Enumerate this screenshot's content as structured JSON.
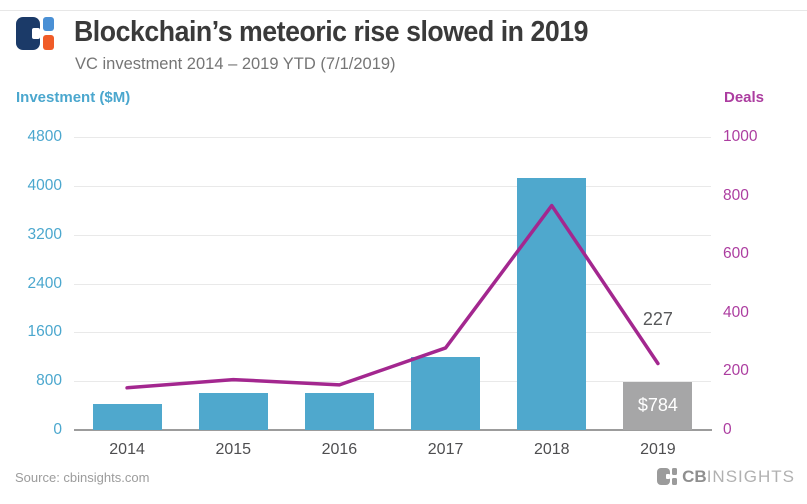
{
  "header": {
    "title": "Blockchain’s meteoric rise slowed in 2019",
    "subtitle": "VC investment 2014 – 2019 YTD (7/1/2019)"
  },
  "chart_data": {
    "type": "combo-bar-line",
    "categories": [
      "2014",
      "2015",
      "2016",
      "2017",
      "2018",
      "2019"
    ],
    "series": [
      {
        "name": "Investment ($M)",
        "type": "bar",
        "axis": "left",
        "values": [
          420,
          610,
          600,
          1200,
          4130,
          784
        ],
        "colors": [
          "#4FA8CD",
          "#4FA8CD",
          "#4FA8CD",
          "#4FA8CD",
          "#4FA8CD",
          "#A6A6A7"
        ]
      },
      {
        "name": "Deals",
        "type": "line",
        "axis": "right",
        "values": [
          144,
          172,
          154,
          280,
          766,
          227
        ],
        "color": "#A3278F"
      }
    ],
    "left_axis": {
      "label": "Investment ($M)",
      "ticks": [
        0,
        800,
        1600,
        2400,
        3200,
        4000,
        4800
      ],
      "range": [
        0,
        4800
      ],
      "color": "#4BA7CE"
    },
    "right_axis": {
      "label": "Deals",
      "ticks": [
        0,
        200,
        400,
        600,
        800,
        1000
      ],
      "range": [
        0,
        1000
      ],
      "color": "#AC3DA0"
    },
    "annotations": [
      {
        "text": "$784",
        "attach": "bar",
        "index": 5,
        "color": "#FFFFFF"
      },
      {
        "text": "227",
        "attach": "line",
        "index": 5,
        "color": "#58595B"
      }
    ],
    "grid": true,
    "legend": "none"
  },
  "footer": {
    "source": "Source: cbinsights.com",
    "brand_cb": "CB",
    "brand_insights": "INSIGHTS"
  },
  "colors": {
    "title": "#3A3A3A",
    "subtitle": "#757575",
    "x_labels": "#4E4E50",
    "grid": "#E9E9E9",
    "axis_line": "#9C9C9C",
    "source": "#9C9C9C",
    "logo_navy": "#1B3A68",
    "logo_blue": "#4A90D5",
    "logo_orange": "#F05C28",
    "brand_gray": "#9B9B9B",
    "brand_cb_gray": "#8F8F8F",
    "brand_insights_gray": "#B1B1B1"
  }
}
